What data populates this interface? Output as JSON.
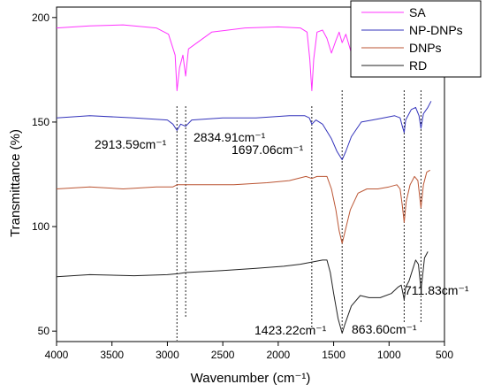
{
  "chart_data": {
    "type": "line",
    "xlabel": "Wavenumber (cm⁻¹)",
    "ylabel": "Transmittance (%)",
    "xlim": [
      4000,
      500
    ],
    "ylim": [
      45,
      205
    ],
    "x_reversed": true,
    "grid": false,
    "legend_position": "top-right",
    "xticks": [
      4000,
      3500,
      3000,
      2500,
      2000,
      1500,
      1000,
      500
    ],
    "yticks": [
      50,
      100,
      150,
      200
    ],
    "series": [
      {
        "name": "SA",
        "color": "#ff33ff",
        "points": [
          [
            4000,
            195
          ],
          [
            3700,
            196
          ],
          [
            3400,
            196.5
          ],
          [
            3100,
            195
          ],
          [
            2990,
            192
          ],
          [
            2930,
            182
          ],
          [
            2913.59,
            165
          ],
          [
            2890,
            176
          ],
          [
            2860,
            182
          ],
          [
            2834.91,
            172
          ],
          [
            2810,
            185
          ],
          [
            2600,
            193
          ],
          [
            2300,
            195
          ],
          [
            2000,
            195.5
          ],
          [
            1800,
            195
          ],
          [
            1740,
            193
          ],
          [
            1715,
            180
          ],
          [
            1697.06,
            165
          ],
          [
            1680,
            180
          ],
          [
            1650,
            193
          ],
          [
            1600,
            194
          ],
          [
            1560,
            190
          ],
          [
            1520,
            183
          ],
          [
            1480,
            189
          ],
          [
            1450,
            193
          ],
          [
            1423.22,
            188
          ],
          [
            1390,
            192
          ],
          [
            1340,
            183
          ],
          [
            1300,
            176
          ],
          [
            1260,
            188
          ],
          [
            1220,
            193
          ],
          [
            1160,
            194
          ],
          [
            1100,
            191
          ],
          [
            1040,
            188
          ],
          [
            980,
            190
          ],
          [
            930,
            182
          ],
          [
            890,
            190
          ],
          [
            863.6,
            193
          ],
          [
            820,
            196
          ],
          [
            780,
            197
          ],
          [
            745,
            193
          ],
          [
            711.83,
            181
          ],
          [
            690,
            193
          ],
          [
            650,
            196
          ],
          [
            600,
            196
          ]
        ]
      },
      {
        "name": "NP-DNPs",
        "color": "#3333bb",
        "points": [
          [
            4000,
            152
          ],
          [
            3700,
            153
          ],
          [
            3300,
            152
          ],
          [
            3000,
            151
          ],
          [
            2950,
            149
          ],
          [
            2913.59,
            146
          ],
          [
            2880,
            149
          ],
          [
            2834.91,
            148
          ],
          [
            2780,
            151
          ],
          [
            2500,
            152
          ],
          [
            2200,
            152
          ],
          [
            1900,
            153
          ],
          [
            1760,
            153
          ],
          [
            1720,
            152
          ],
          [
            1697.06,
            149
          ],
          [
            1660,
            151
          ],
          [
            1600,
            149
          ],
          [
            1520,
            142
          ],
          [
            1470,
            136
          ],
          [
            1423.22,
            132
          ],
          [
            1390,
            136
          ],
          [
            1340,
            143
          ],
          [
            1250,
            150
          ],
          [
            1150,
            151
          ],
          [
            1050,
            152
          ],
          [
            950,
            153
          ],
          [
            900,
            152
          ],
          [
            880,
            148
          ],
          [
            863.6,
            145
          ],
          [
            850,
            151
          ],
          [
            800,
            156
          ],
          [
            760,
            157
          ],
          [
            730,
            153
          ],
          [
            711.83,
            147
          ],
          [
            690,
            154
          ],
          [
            650,
            157
          ],
          [
            620,
            160
          ]
        ]
      },
      {
        "name": "DNPs",
        "color": "#bb5533",
        "points": [
          [
            4000,
            118
          ],
          [
            3700,
            119
          ],
          [
            3400,
            118
          ],
          [
            3100,
            119
          ],
          [
            2950,
            119
          ],
          [
            2913.59,
            120
          ],
          [
            2834.91,
            120
          ],
          [
            2700,
            120
          ],
          [
            2400,
            120
          ],
          [
            2100,
            121
          ],
          [
            1900,
            122
          ],
          [
            1750,
            124
          ],
          [
            1697.06,
            123
          ],
          [
            1650,
            124
          ],
          [
            1560,
            124
          ],
          [
            1520,
            118
          ],
          [
            1480,
            108
          ],
          [
            1450,
            98
          ],
          [
            1423.22,
            92
          ],
          [
            1400,
            97
          ],
          [
            1350,
            108
          ],
          [
            1280,
            116
          ],
          [
            1200,
            118
          ],
          [
            1100,
            118
          ],
          [
            1000,
            119
          ],
          [
            930,
            120
          ],
          [
            900,
            118
          ],
          [
            880,
            110
          ],
          [
            863.6,
            102
          ],
          [
            845,
            112
          ],
          [
            810,
            120
          ],
          [
            770,
            124
          ],
          [
            740,
            122
          ],
          [
            711.83,
            109
          ],
          [
            690,
            120
          ],
          [
            660,
            126
          ],
          [
            630,
            127
          ]
        ]
      },
      {
        "name": "RD",
        "color": "#222222",
        "points": [
          [
            4000,
            76
          ],
          [
            3700,
            77
          ],
          [
            3300,
            76.5
          ],
          [
            3000,
            77
          ],
          [
            2900,
            77.5
          ],
          [
            2834.91,
            78
          ],
          [
            2500,
            79
          ],
          [
            2200,
            80
          ],
          [
            1950,
            81
          ],
          [
            1800,
            82
          ],
          [
            1700,
            83
          ],
          [
            1600,
            84
          ],
          [
            1560,
            84
          ],
          [
            1530,
            78
          ],
          [
            1500,
            68
          ],
          [
            1460,
            56
          ],
          [
            1423.22,
            49
          ],
          [
            1400,
            53
          ],
          [
            1340,
            62
          ],
          [
            1260,
            67
          ],
          [
            1180,
            66
          ],
          [
            1080,
            66
          ],
          [
            980,
            68
          ],
          [
            920,
            71
          ],
          [
            890,
            72
          ],
          [
            875,
            68
          ],
          [
            863.6,
            65
          ],
          [
            850,
            71
          ],
          [
            820,
            74
          ],
          [
            790,
            79
          ],
          [
            760,
            84
          ],
          [
            735,
            82
          ],
          [
            711.83,
            70
          ],
          [
            700,
            75
          ],
          [
            680,
            85
          ],
          [
            650,
            88
          ]
        ]
      }
    ],
    "annotations": [
      {
        "text": "2913.59cm⁻¹",
        "x": 2913.59
      },
      {
        "text": "2834.91cm⁻¹",
        "x": 2834.91
      },
      {
        "text": "1697.06cm⁻¹",
        "x": 1697.06
      },
      {
        "text": "1423.22cm⁻¹",
        "x": 1423.22
      },
      {
        "text": "863.60cm⁻¹",
        "x": 863.6
      },
      {
        "text": "711.83cm⁻¹",
        "x": 711.83
      }
    ]
  }
}
